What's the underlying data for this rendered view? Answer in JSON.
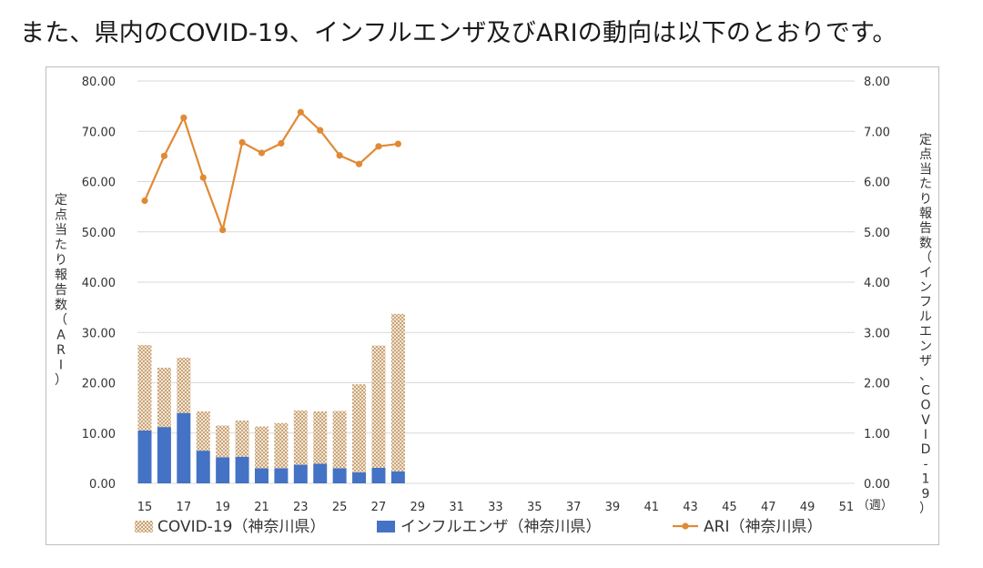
{
  "heading": "また、県内のCOVID-19、インフルエンザ及びARIの動向は以下のとおりです。",
  "chart_data": {
    "type": "bar",
    "x": [
      15,
      16,
      17,
      18,
      19,
      20,
      21,
      22,
      23,
      24,
      25,
      26,
      27,
      28
    ],
    "x_ticks": [
      15,
      17,
      19,
      21,
      23,
      25,
      27,
      29,
      31,
      33,
      35,
      37,
      39,
      41,
      43,
      45,
      47,
      49,
      51
    ],
    "x_range": [
      15,
      51
    ],
    "x_unit_label": "（週）",
    "left_axis": {
      "label": "定点当たり報告数（ARI）",
      "ylim": [
        0,
        80
      ],
      "ticks": [
        "0.00",
        "10.00",
        "20.00",
        "30.00",
        "40.00",
        "50.00",
        "60.00",
        "70.00",
        "80.00"
      ]
    },
    "right_axis": {
      "label": "定点当たり報告数（インフルエンザ、COVID-19）",
      "ylim": [
        0,
        8
      ],
      "ticks": [
        "0.00",
        "1.00",
        "2.00",
        "3.00",
        "4.00",
        "5.00",
        "6.00",
        "7.00",
        "8.00"
      ]
    },
    "series": [
      {
        "name": "COVID-19（神奈川県）",
        "kind": "stacked-bar",
        "axis": "right",
        "pattern": "crosshatch",
        "color": "#c9a47a",
        "values": [
          1.7,
          1.18,
          1.1,
          0.78,
          0.63,
          0.72,
          0.83,
          0.9,
          1.08,
          1.04,
          1.14,
          1.75,
          2.43,
          3.13
        ]
      },
      {
        "name": "インフルエンザ（神奈川県）",
        "kind": "stacked-bar",
        "axis": "right",
        "color": "#4472c4",
        "values": [
          1.05,
          1.12,
          1.4,
          0.65,
          0.52,
          0.53,
          0.3,
          0.3,
          0.37,
          0.39,
          0.3,
          0.22,
          0.31,
          0.24
        ]
      },
      {
        "name": "ARI（神奈川県）",
        "kind": "line",
        "axis": "left",
        "color": "#e08a36",
        "values": [
          56.2,
          65.1,
          72.7,
          60.8,
          50.4,
          67.8,
          65.7,
          67.6,
          73.8,
          70.2,
          65.2,
          63.5,
          67.0,
          67.5
        ]
      }
    ],
    "grid": true,
    "legend_position": "bottom"
  }
}
